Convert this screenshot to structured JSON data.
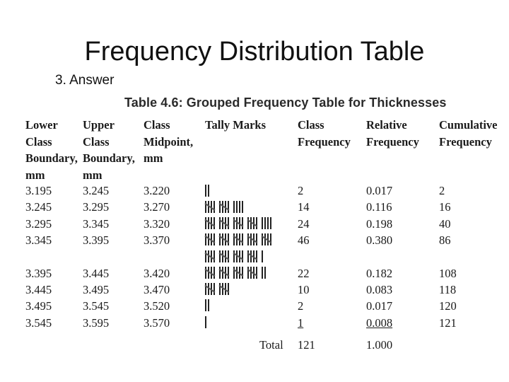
{
  "slide": {
    "title": "Frequency Distribution Table",
    "subtitle": "3. Answer"
  },
  "table": {
    "caption": "Table 4.6: Grouped Frequency Table for Thicknesses",
    "headers": [
      [
        "Lower",
        "Class",
        "Boundary,",
        "mm"
      ],
      [
        "Upper",
        "Class",
        "Boundary,",
        "mm"
      ],
      [
        "Class",
        "Midpoint,",
        "mm"
      ],
      [
        "Tally Marks"
      ],
      [
        "Class",
        "Frequency"
      ],
      [
        "Relative",
        "Frequency"
      ],
      [
        "Cumulative",
        "Frequency"
      ]
    ],
    "rows": [
      [
        "3.195",
        "3.245",
        "3.220",
        "2",
        "0.017",
        "2"
      ],
      [
        "3.245",
        "3.295",
        "3.270",
        "14",
        "0.116",
        "16"
      ],
      [
        "3.295",
        "3.345",
        "3.320",
        "24",
        "0.198",
        "40"
      ],
      [
        "3.345",
        "3.395",
        "3.370",
        "46",
        "0.380",
        "86"
      ],
      [
        "3.395",
        "3.445",
        "3.420",
        "22",
        "0.182",
        "108"
      ],
      [
        "3.445",
        "3.495",
        "3.470",
        "10",
        "0.083",
        "118"
      ],
      [
        "3.495",
        "3.545",
        "3.520",
        "2",
        "0.017",
        "120"
      ],
      [
        "3.545",
        "3.595",
        "3.570",
        "1",
        "0.008",
        "121"
      ]
    ],
    "total": {
      "label": "Total",
      "frequency": "121",
      "relative": "1.000"
    }
  }
}
